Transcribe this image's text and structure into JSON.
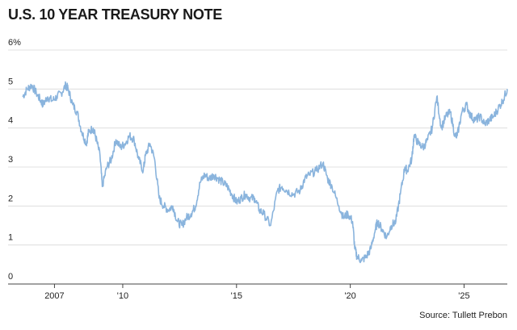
{
  "chart_data": {
    "type": "line",
    "title": "U.S. 10 YEAR TREASURY NOTE",
    "source": "Source: Tullett Prebon",
    "ylim": [
      0,
      6
    ],
    "xlim": [
      2005.6,
      2026.9
    ],
    "grid": true,
    "y_ticks": [
      {
        "value": 6,
        "label": "6%"
      },
      {
        "value": 5,
        "label": "5"
      },
      {
        "value": 4,
        "label": "4"
      },
      {
        "value": 3,
        "label": "3"
      },
      {
        "value": 2,
        "label": "2"
      },
      {
        "value": 1,
        "label": "1"
      },
      {
        "value": 0,
        "label": "0"
      }
    ],
    "x_ticks": [
      {
        "value": 2007,
        "label": "2007"
      },
      {
        "value": 2010,
        "label": "'10"
      },
      {
        "value": 2015,
        "label": "'15"
      },
      {
        "value": 2020,
        "label": "'20"
      },
      {
        "value": 2025,
        "label": "'25"
      }
    ],
    "line_color": "#8ab4dd",
    "series": [
      {
        "x": [
          2005.6,
          2005.8,
          2006.0,
          2006.2,
          2006.4,
          2006.5,
          2006.7,
          2006.9,
          2007.1,
          2007.3,
          2007.5,
          2007.6,
          2007.8,
          2008.0,
          2008.2,
          2008.4,
          2008.5,
          2008.7,
          2008.8,
          2009.0,
          2009.1,
          2009.3,
          2009.5,
          2009.7,
          2009.9,
          2010.1,
          2010.3,
          2010.5,
          2010.7,
          2010.9,
          2011.0,
          2011.2,
          2011.4,
          2011.6,
          2011.8,
          2012.0,
          2012.2,
          2012.4,
          2012.6,
          2012.8,
          2013.0,
          2013.2,
          2013.4,
          2013.6,
          2013.8,
          2014.0,
          2014.2,
          2014.4,
          2014.6,
          2014.8,
          2015.0,
          2015.2,
          2015.4,
          2015.6,
          2015.8,
          2016.0,
          2016.2,
          2016.5,
          2016.8,
          2017.0,
          2017.2,
          2017.5,
          2017.8,
          2018.0,
          2018.2,
          2018.5,
          2018.8,
          2019.0,
          2019.2,
          2019.5,
          2019.7,
          2019.9,
          2020.1,
          2020.2,
          2020.3,
          2020.5,
          2020.7,
          2020.9,
          2021.1,
          2021.2,
          2021.4,
          2021.6,
          2021.8,
          2022.0,
          2022.2,
          2022.4,
          2022.5,
          2022.7,
          2022.8,
          2023.0,
          2023.2,
          2023.4,
          2023.6,
          2023.8,
          2024.0,
          2024.2,
          2024.4,
          2024.6,
          2024.7,
          2024.9,
          2025.1,
          2025.3,
          2025.5,
          2025.7,
          2025.9,
          2026.1,
          2026.3,
          2026.5,
          2026.7,
          2026.9
        ],
        "values": [
          4.8,
          5.0,
          5.1,
          4.9,
          4.7,
          4.6,
          4.8,
          4.7,
          4.8,
          4.9,
          5.1,
          5.0,
          4.6,
          4.4,
          3.9,
          3.6,
          3.9,
          4.0,
          3.8,
          3.3,
          2.5,
          3.0,
          3.2,
          3.7,
          3.5,
          3.6,
          3.8,
          3.7,
          3.2,
          2.9,
          3.3,
          3.6,
          3.2,
          2.2,
          2.0,
          1.9,
          2.0,
          1.6,
          1.5,
          1.7,
          1.8,
          2.0,
          2.6,
          2.8,
          2.7,
          2.8,
          2.7,
          2.6,
          2.5,
          2.3,
          2.1,
          2.2,
          2.3,
          2.2,
          2.2,
          1.9,
          1.8,
          1.5,
          2.4,
          2.5,
          2.4,
          2.3,
          2.4,
          2.7,
          2.8,
          2.9,
          3.1,
          2.7,
          2.5,
          2.0,
          1.7,
          1.8,
          1.6,
          0.9,
          0.7,
          0.6,
          0.7,
          0.9,
          1.4,
          1.6,
          1.4,
          1.2,
          1.5,
          1.6,
          2.3,
          3.0,
          2.9,
          3.2,
          3.8,
          3.6,
          3.5,
          3.7,
          4.0,
          4.8,
          4.0,
          4.3,
          4.4,
          3.8,
          3.8,
          4.4,
          4.6,
          4.3,
          4.2,
          4.3,
          4.1,
          4.2,
          4.3,
          4.5,
          4.7,
          5.0
        ]
      }
    ]
  }
}
